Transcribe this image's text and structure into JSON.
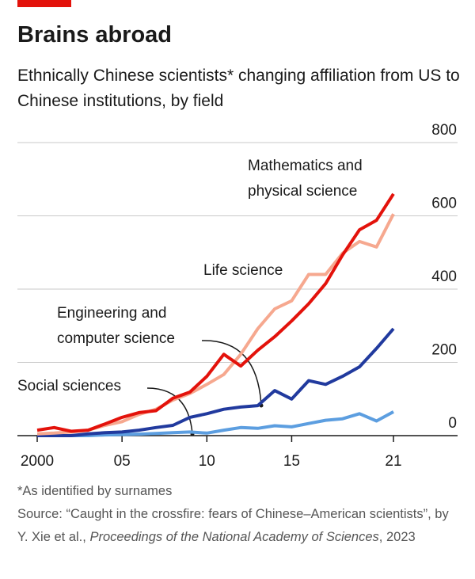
{
  "chart_data": {
    "type": "line",
    "title": "Brains abroad",
    "subtitle": "Ethnically Chinese scientists* changing affiliation from US to Chinese institutions, by field",
    "x": [
      2000,
      2001,
      2002,
      2003,
      2004,
      2005,
      2006,
      2007,
      2008,
      2009,
      2010,
      2011,
      2012,
      2013,
      2014,
      2015,
      2016,
      2017,
      2018,
      2019,
      2020,
      2021
    ],
    "series": [
      {
        "name": "Mathematics and physical science",
        "color": "#e3120b",
        "values": [
          15,
          22,
          12,
          15,
          32,
          50,
          63,
          68,
          102,
          119,
          162,
          222,
          190,
          233,
          270,
          313,
          360,
          415,
          493,
          562,
          588,
          660
        ]
      },
      {
        "name": "Life science",
        "color": "#f6a88f",
        "values": [
          5,
          7,
          10,
          15,
          28,
          38,
          58,
          72,
          97,
          115,
          140,
          167,
          222,
          292,
          346,
          368,
          440,
          440,
          498,
          530,
          515,
          605
        ]
      },
      {
        "name": "Engineering and computer science",
        "color": "#213a9e",
        "values": [
          0,
          0,
          0,
          5,
          8,
          10,
          15,
          22,
          28,
          50,
          60,
          72,
          78,
          82,
          123,
          100,
          150,
          140,
          162,
          188,
          238,
          292
        ]
      },
      {
        "name": "Social sciences",
        "color": "#5c9ee0",
        "values": [
          0,
          0,
          0,
          0,
          2,
          3,
          4,
          6,
          8,
          10,
          7,
          15,
          22,
          20,
          27,
          24,
          33,
          42,
          46,
          60,
          40,
          65
        ]
      }
    ],
    "xlim": [
      2000,
      2021
    ],
    "xticks": [
      2000,
      {
        "value": 2005,
        "label": "05"
      },
      {
        "value": 2010,
        "label": "10"
      },
      {
        "value": 2015,
        "label": "15"
      },
      {
        "value": 2021,
        "label": "21"
      }
    ],
    "ylim": [
      0,
      800
    ],
    "yticks": [
      0,
      200,
      400,
      600,
      800
    ],
    "grid": true,
    "footnote": "*As identified by surnames",
    "source": "Source: “Caught in the crossfire: fears of Chinese–American scientists”, by Y. Xie et al.,",
    "source_journal": "Proceedings of the National Academy of Sciences",
    "source_year": ", 2023"
  }
}
